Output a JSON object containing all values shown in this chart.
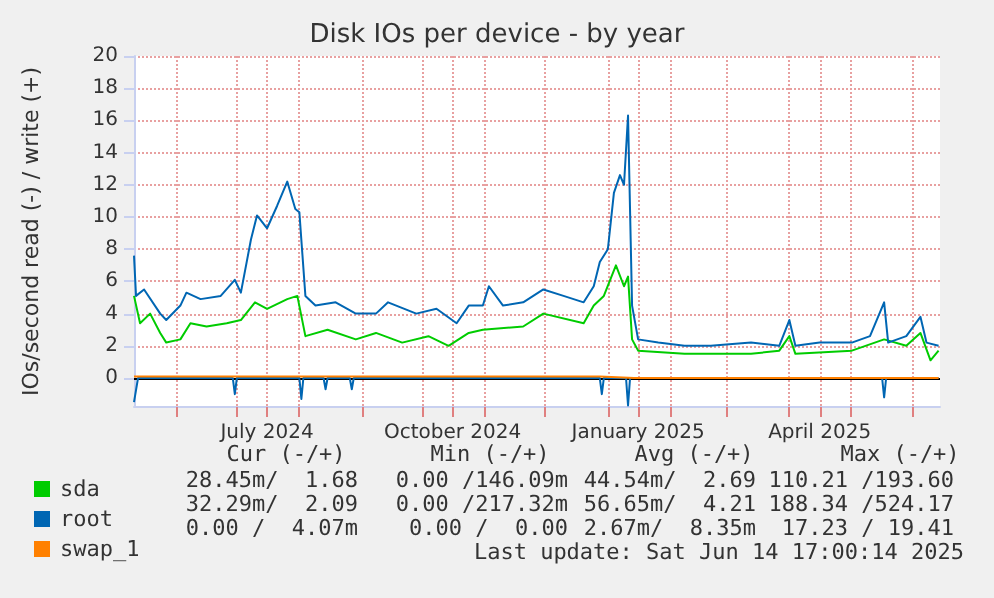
{
  "chart_data": {
    "type": "line",
    "title": "Disk IOs per device - by year",
    "ylabel": "IOs/second read (-) / write (+)",
    "xlim": [
      "2024-05-11",
      "2025-06-14T17:00"
    ],
    "xticks": [
      {
        "value": "2024-06-01",
        "label": null
      },
      {
        "value": "2024-07-01",
        "label": null
      },
      {
        "value": "2024-07-16",
        "label": "July 2024"
      },
      {
        "value": "2024-08-01",
        "label": null
      },
      {
        "value": "2024-09-01",
        "label": null
      },
      {
        "value": "2024-10-01",
        "label": null
      },
      {
        "value": "2024-10-16",
        "label": "October 2024"
      },
      {
        "value": "2024-11-01",
        "label": null
      },
      {
        "value": "2024-12-01",
        "label": null
      },
      {
        "value": "2025-01-01",
        "label": null
      },
      {
        "value": "2025-01-16",
        "label": "January 2025"
      },
      {
        "value": "2025-02-01",
        "label": null
      },
      {
        "value": "2025-03-01",
        "label": null
      },
      {
        "value": "2025-04-01",
        "label": null
      },
      {
        "value": "2025-04-16",
        "label": "April 2025"
      },
      {
        "value": "2025-05-01",
        "label": null
      },
      {
        "value": "2025-06-01",
        "label": null
      }
    ],
    "ylim": [
      -1.8,
      20
    ],
    "yticks": [
      0,
      2,
      4,
      6,
      8,
      10,
      12,
      14,
      16,
      18,
      20
    ],
    "grid": true,
    "legend": "bottom left",
    "marker": "none",
    "line_style": "solid",
    "ref_lines": [
      {
        "axis": "y",
        "value": 0,
        "color": "#000000"
      }
    ],
    "series": [
      {
        "name": "sda",
        "color": "#00cc00",
        "x": [
          "2024-05-11",
          "2024-05-14",
          "2024-05-19",
          "2024-05-24",
          "2024-05-27",
          "2024-06-03",
          "2024-06-08",
          "2024-06-16",
          "2024-06-26",
          "2024-07-03",
          "2024-07-10",
          "2024-07-16",
          "2024-07-26",
          "2024-07-31",
          "2024-08-04",
          "2024-08-15",
          "2024-08-29",
          "2024-09-08",
          "2024-09-21",
          "2024-10-04",
          "2024-10-14",
          "2024-10-24",
          "2024-10-31",
          "2024-11-20",
          "2024-11-30",
          "2024-12-20",
          "2024-12-25",
          "2024-12-30",
          "2025-01-05",
          "2025-01-09",
          "2025-01-11",
          "2025-01-13",
          "2025-01-16",
          "2025-02-08",
          "2025-03-13",
          "2025-03-27",
          "2025-04-01",
          "2025-04-04",
          "2025-05-02",
          "2025-05-18",
          "2025-05-29",
          "2025-06-05",
          "2025-06-10",
          "2025-06-14"
        ],
        "values": [
          5.1,
          3.4,
          4.0,
          2.8,
          2.2,
          2.4,
          3.4,
          3.2,
          3.4,
          3.6,
          4.7,
          4.3,
          4.9,
          5.1,
          2.6,
          3.0,
          2.4,
          2.8,
          2.2,
          2.6,
          2.0,
          2.8,
          3.0,
          3.2,
          4.0,
          3.4,
          4.5,
          5.1,
          7.0,
          5.7,
          6.3,
          2.4,
          1.7,
          1.5,
          1.5,
          1.7,
          2.6,
          1.5,
          1.7,
          2.4,
          2.0,
          2.8,
          1.1,
          1.7
        ]
      },
      {
        "name": "root",
        "color": "#0066b3",
        "x": [
          "2024-05-11",
          "2024-05-12",
          "2024-05-16",
          "2024-05-24",
          "2024-05-27",
          "2024-06-03",
          "2024-06-06",
          "2024-06-13",
          "2024-06-23",
          "2024-06-30",
          "2024-07-03",
          "2024-07-08",
          "2024-07-11",
          "2024-07-16",
          "2024-07-21",
          "2024-07-26",
          "2024-07-30",
          "2024-08-01",
          "2024-08-04",
          "2024-08-09",
          "2024-08-19",
          "2024-08-29",
          "2024-09-08",
          "2024-09-14",
          "2024-09-28",
          "2024-10-08",
          "2024-10-18",
          "2024-10-24",
          "2024-10-31",
          "2024-11-03",
          "2024-11-10",
          "2024-11-20",
          "2024-11-30",
          "2024-12-10",
          "2024-12-20",
          "2024-12-25",
          "2024-12-28",
          "2025-01-01",
          "2025-01-04",
          "2025-01-07",
          "2025-01-09",
          "2025-01-11",
          "2025-01-13",
          "2025-01-16",
          "2025-01-26",
          "2025-02-08",
          "2025-02-21",
          "2025-03-13",
          "2025-03-27",
          "2025-04-01",
          "2025-04-04",
          "2025-04-16",
          "2025-05-02",
          "2025-05-11",
          "2025-05-18",
          "2025-05-20",
          "2025-05-29",
          "2025-06-05",
          "2025-06-08",
          "2025-06-14"
        ],
        "values": [
          7.6,
          5.1,
          5.5,
          4.0,
          3.6,
          4.5,
          5.3,
          4.9,
          5.1,
          6.1,
          5.3,
          8.6,
          10.1,
          9.3,
          10.7,
          12.2,
          10.5,
          10.3,
          5.1,
          4.5,
          4.7,
          4.0,
          4.0,
          4.7,
          4.0,
          4.3,
          3.4,
          4.5,
          4.5,
          5.7,
          4.5,
          4.7,
          5.5,
          5.1,
          4.7,
          5.7,
          7.2,
          8.0,
          11.5,
          12.6,
          12.0,
          16.3,
          4.5,
          2.4,
          2.2,
          2.0,
          2.0,
          2.2,
          2.0,
          3.6,
          2.0,
          2.2,
          2.2,
          2.6,
          4.7,
          2.2,
          2.6,
          3.8,
          2.2,
          2.0
        ]
      },
      {
        "color": "#0066b3",
        "x": [
          "2024-05-11",
          "2024-05-13",
          "2024-06-29",
          "2024-06-30",
          "2024-07-01",
          "2024-08-01",
          "2024-08-02",
          "2024-08-03",
          "2024-08-13",
          "2024-08-14",
          "2024-08-15",
          "2024-08-26",
          "2024-08-27",
          "2024-08-28",
          "2024-12-28",
          "2024-12-29",
          "2024-12-30",
          "2025-01-10",
          "2025-01-11",
          "2025-01-12",
          "2025-05-17",
          "2025-05-18",
          "2025-05-19",
          "2025-06-14"
        ],
        "values": [
          -1.5,
          0,
          0,
          -1.0,
          0,
          0,
          -1.3,
          0,
          0,
          -0.7,
          0,
          0,
          -0.7,
          0,
          0,
          -1.0,
          0,
          0,
          -1.7,
          0,
          0,
          -1.2,
          0,
          0
        ]
      },
      {
        "name": "swap_1",
        "color": "#ff8000",
        "x": [
          "2024-05-11",
          "2024-08-01",
          "2024-12-28",
          "2025-01-14",
          "2025-06-14"
        ],
        "values": [
          0.1,
          0.1,
          0.1,
          0.0,
          0.0
        ]
      }
    ],
    "annotations": [
      "Cur (-/+)",
      "Min (-/+)",
      "Avg (-/+)",
      "Max (-/+)",
      "28.45m/  1.68",
      "0.00 /146.09m",
      "44.54m/  2.69",
      "110.21 /193.60",
      "32.29m/  2.09",
      "0.00 /217.32m",
      "56.65m/  4.21",
      "188.34 /524.17",
      "0.00 /  4.07m",
      "0.00 /  0.00",
      "2.67m/  8.35m",
      "17.23 / 19.41",
      "Last update: Sat Jun 14 17:00:14 2025"
    ]
  }
}
